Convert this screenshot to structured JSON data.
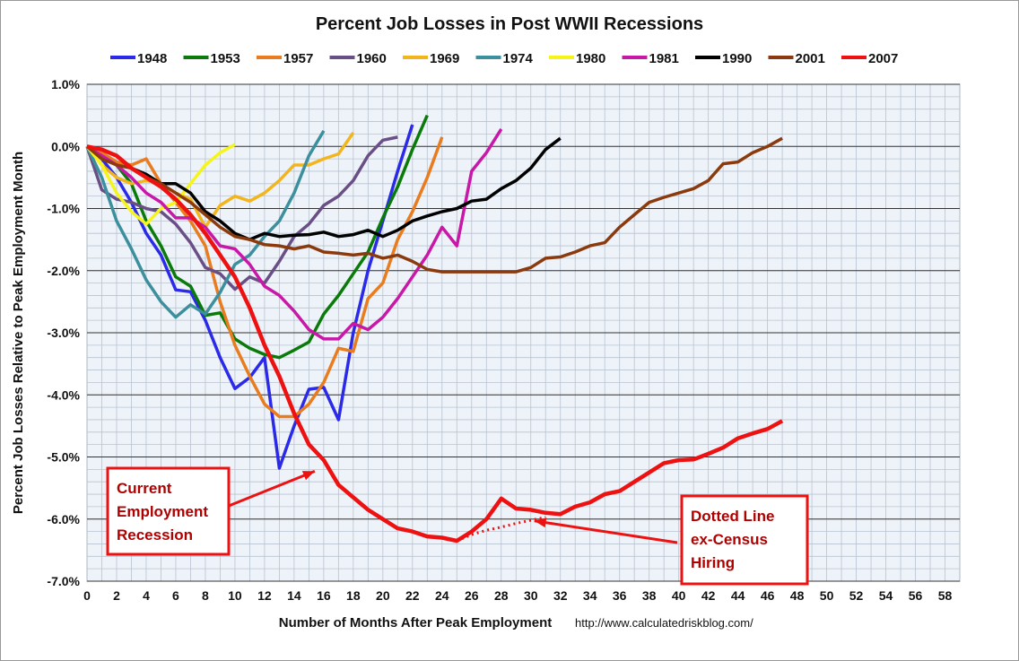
{
  "chart_data": {
    "type": "line",
    "title": "Percent Job Losses in Post WWII Recessions",
    "xlabel": "Number of Months After Peak Employment",
    "ylabel": "Percent Job Losses Relative to Peak Employment Month",
    "source": "http://www.calculatedriskblog.com/",
    "xlim": [
      0,
      59
    ],
    "ylim": [
      -7,
      1
    ],
    "x_ticks": [
      0,
      2,
      4,
      6,
      8,
      10,
      12,
      14,
      16,
      18,
      20,
      22,
      24,
      26,
      28,
      30,
      32,
      34,
      36,
      38,
      40,
      42,
      44,
      46,
      48,
      50,
      52,
      54,
      56,
      58
    ],
    "y_ticks": [
      "1.0%",
      "0.0%",
      "-1.0%",
      "-2.0%",
      "-3.0%",
      "-4.0%",
      "-5.0%",
      "-6.0%",
      "-7.0%"
    ],
    "y_tick_values": [
      1,
      0,
      -1,
      -2,
      -3,
      -4,
      -5,
      -6,
      -7
    ],
    "grid": true,
    "legend_position": "top",
    "series": [
      {
        "name": "1948",
        "color": "#2a2ae8",
        "values": [
          0,
          -0.2,
          -0.5,
          -0.9,
          -1.4,
          -1.75,
          -2.31,
          -2.34,
          -2.8,
          -3.4,
          -3.9,
          -3.72,
          -3.4,
          -5.18,
          -4.5,
          -3.91,
          -3.88,
          -4.4,
          -3.0,
          -2.0,
          -1.2,
          -0.4,
          0.35
        ]
      },
      {
        "name": "1953",
        "color": "#0a7a0a",
        "values": [
          0,
          -0.1,
          -0.3,
          -0.6,
          -1.2,
          -1.6,
          -2.1,
          -2.25,
          -2.72,
          -2.68,
          -3.1,
          -3.25,
          -3.35,
          -3.4,
          -3.28,
          -3.15,
          -2.7,
          -2.4,
          -2.05,
          -1.7,
          -1.15,
          -0.65,
          -0.05,
          0.5
        ]
      },
      {
        "name": "1957",
        "color": "#e87c1e",
        "values": [
          0,
          -0.1,
          -0.25,
          -0.3,
          -0.2,
          -0.6,
          -0.9,
          -1.2,
          -1.6,
          -2.5,
          -3.2,
          -3.7,
          -4.15,
          -4.35,
          -4.35,
          -4.15,
          -3.8,
          -3.25,
          -3.3,
          -2.45,
          -2.2,
          -1.5,
          -1.05,
          -0.5,
          0.15
        ]
      },
      {
        "name": "1960",
        "color": "#6a4f86",
        "values": [
          0,
          -0.7,
          -0.85,
          -0.9,
          -1.0,
          -1.05,
          -1.25,
          -1.55,
          -1.95,
          -2.05,
          -2.3,
          -2.1,
          -2.2,
          -1.85,
          -1.45,
          -1.25,
          -0.95,
          -0.8,
          -0.55,
          -0.15,
          0.1,
          0.15
        ]
      },
      {
        "name": "1969",
        "color": "#f2b51c",
        "values": [
          0,
          -0.3,
          -0.5,
          -0.6,
          -0.55,
          -0.6,
          -0.75,
          -0.85,
          -1.3,
          -0.95,
          -0.8,
          -0.88,
          -0.75,
          -0.55,
          -0.3,
          -0.3,
          -0.2,
          -0.12,
          0.22
        ]
      },
      {
        "name": "1974",
        "color": "#3c8f9c",
        "values": [
          0,
          -0.5,
          -1.2,
          -1.65,
          -2.15,
          -2.5,
          -2.75,
          -2.55,
          -2.7,
          -2.35,
          -1.9,
          -1.75,
          -1.45,
          -1.2,
          -0.75,
          -0.15,
          0.25
        ]
      },
      {
        "name": "1980",
        "color": "#f5f51a",
        "values": [
          0,
          -0.3,
          -0.75,
          -1.05,
          -1.25,
          -1.0,
          -0.9,
          -0.6,
          -0.3,
          -0.1,
          0.03
        ]
      },
      {
        "name": "1981",
        "color": "#c818a8",
        "values": [
          0,
          -0.15,
          -0.3,
          -0.5,
          -0.75,
          -0.9,
          -1.15,
          -1.15,
          -1.3,
          -1.6,
          -1.65,
          -1.9,
          -2.25,
          -2.4,
          -2.65,
          -2.95,
          -3.1,
          -3.1,
          -2.85,
          -2.95,
          -2.75,
          -2.45,
          -2.1,
          -1.75,
          -1.3,
          -1.6,
          -0.4,
          -0.1,
          0.28
        ]
      },
      {
        "name": "1990",
        "color": "#000000",
        "values": [
          0,
          -0.05,
          -0.15,
          -0.35,
          -0.45,
          -0.6,
          -0.6,
          -0.75,
          -1.05,
          -1.2,
          -1.4,
          -1.5,
          -1.4,
          -1.45,
          -1.43,
          -1.42,
          -1.38,
          -1.45,
          -1.42,
          -1.35,
          -1.45,
          -1.35,
          -1.2,
          -1.12,
          -1.05,
          -1.0,
          -0.88,
          -0.85,
          -0.68,
          -0.55,
          -0.35,
          -0.05,
          0.13
        ]
      },
      {
        "name": "2001",
        "color": "#8b3a0e",
        "values": [
          0,
          -0.2,
          -0.3,
          -0.35,
          -0.5,
          -0.6,
          -0.75,
          -0.9,
          -1.1,
          -1.3,
          -1.45,
          -1.5,
          -1.58,
          -1.6,
          -1.65,
          -1.6,
          -1.7,
          -1.72,
          -1.75,
          -1.72,
          -1.8,
          -1.75,
          -1.85,
          -1.98,
          -2.02,
          -2.02,
          -2.02,
          -2.02,
          -2.02,
          -2.02,
          -1.95,
          -1.8,
          -1.78,
          -1.7,
          -1.6,
          -1.55,
          -1.3,
          -1.1,
          -0.9,
          -0.82,
          -0.75,
          -0.68,
          -0.55,
          -0.28,
          -0.25,
          -0.1,
          0.0,
          0.13
        ]
      },
      {
        "name": "2007",
        "color": "#ee1111",
        "values": [
          0,
          -0.05,
          -0.15,
          -0.35,
          -0.5,
          -0.65,
          -0.85,
          -1.1,
          -1.4,
          -1.75,
          -2.1,
          -2.6,
          -3.2,
          -3.7,
          -4.3,
          -4.8,
          -5.05,
          -5.45,
          -5.65,
          -5.85,
          -6.0,
          -6.15,
          -6.2,
          -6.28,
          -6.3,
          -6.35,
          -6.2,
          -6.0,
          -5.67,
          -5.83,
          -5.85,
          -5.9,
          -5.92,
          -5.8,
          -5.73,
          -5.6,
          -5.55,
          -5.4,
          -5.25,
          -5.1,
          -5.05,
          -5.04,
          -4.95,
          -4.85,
          -4.7,
          -4.62,
          -4.55,
          -4.42
        ]
      }
    ],
    "dotted_series": {
      "name": "2007 ex-Census",
      "color": "#ee1111",
      "x": [
        25,
        26,
        27,
        28,
        29,
        30,
        31
      ],
      "values": [
        -6.35,
        -6.25,
        -6.18,
        -6.13,
        -6.07,
        -6.02,
        -5.97
      ]
    },
    "annotations": [
      {
        "lines": [
          "Current",
          "Employment",
          "Recession"
        ],
        "points_to": {
          "x": 16,
          "y": -5.2
        }
      },
      {
        "lines": [
          "Dotted  Line",
          "ex-Census",
          "Hiring"
        ],
        "points_to": {
          "x": 30,
          "y": -6.0
        }
      }
    ]
  }
}
